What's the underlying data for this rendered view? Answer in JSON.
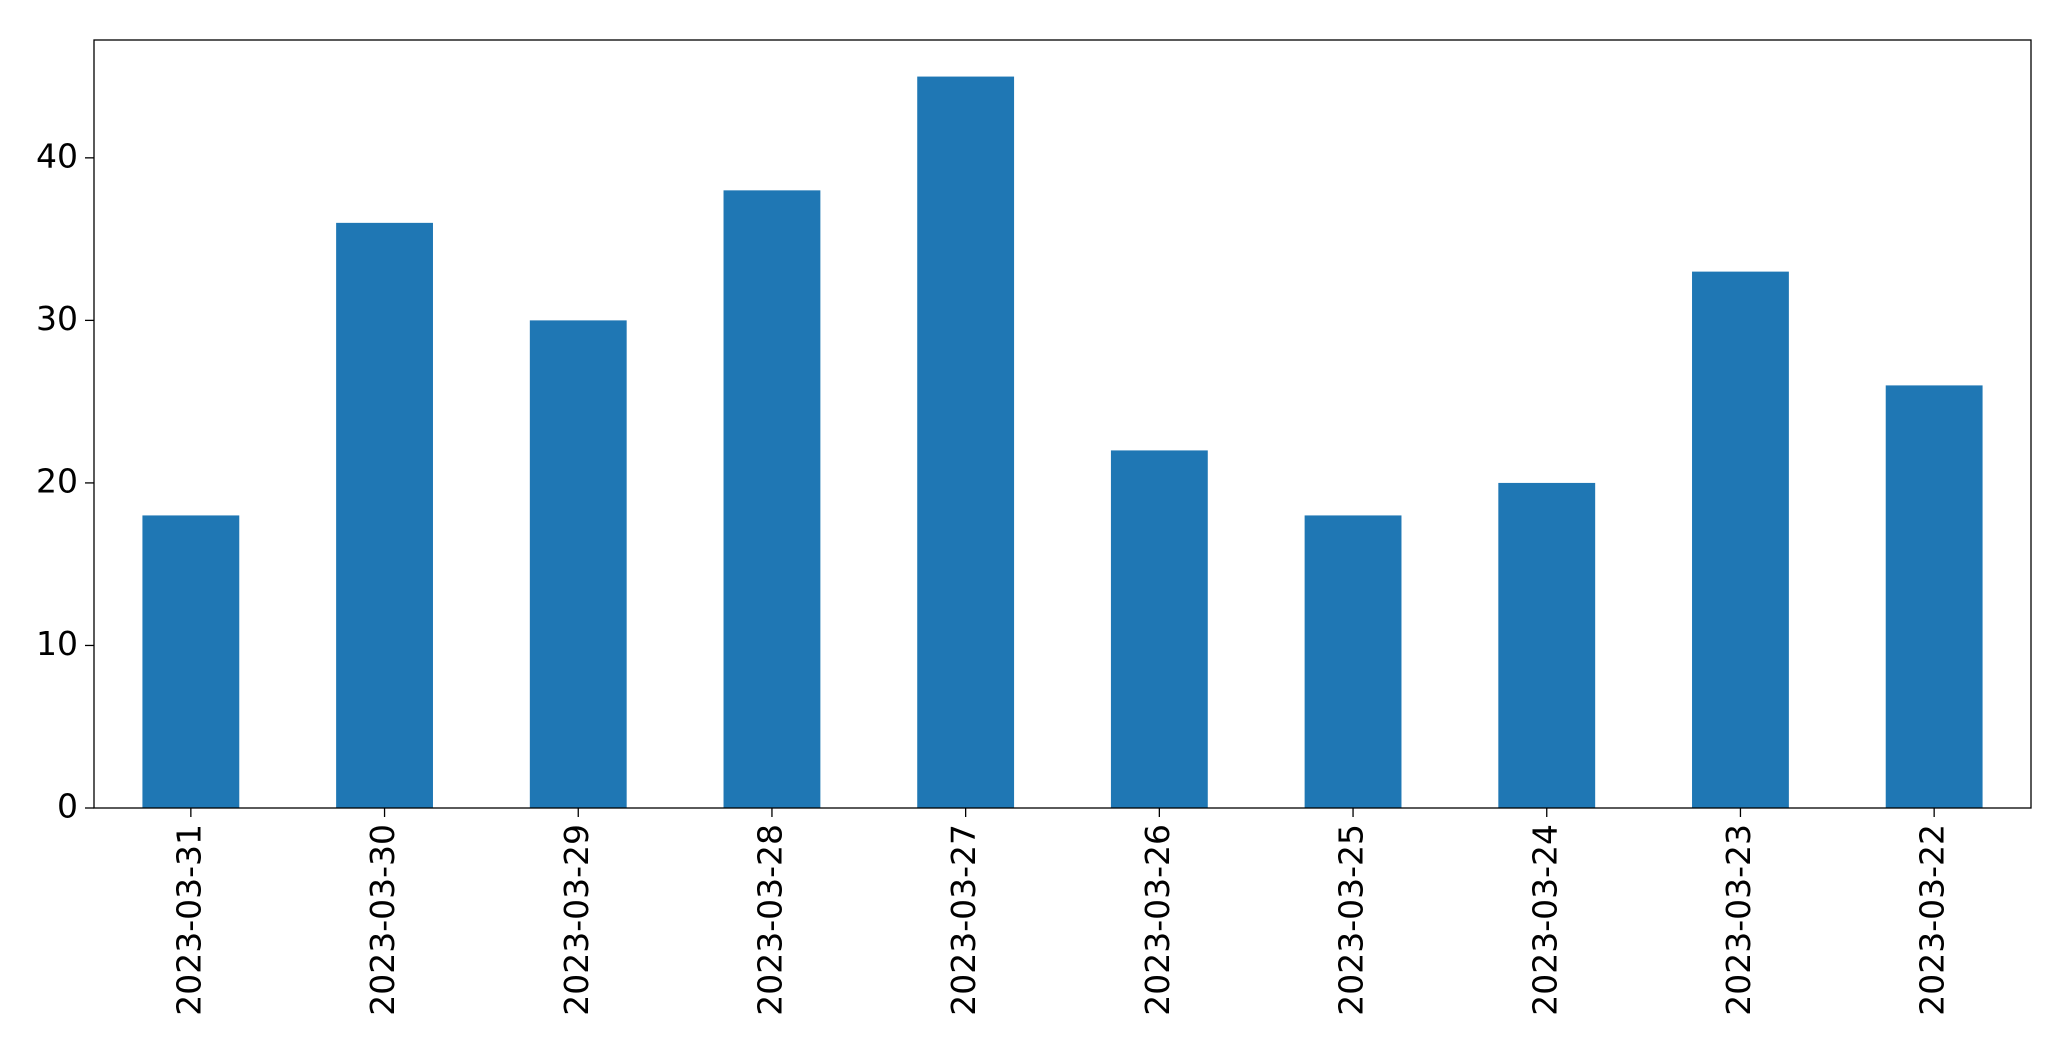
{
  "chart_data": {
    "type": "bar",
    "categories": [
      "2023-03-31",
      "2023-03-30",
      "2023-03-29",
      "2023-03-28",
      "2023-03-27",
      "2023-03-26",
      "2023-03-25",
      "2023-03-24",
      "2023-03-23",
      "2023-03-22"
    ],
    "values": [
      18,
      36,
      30,
      38,
      45,
      22,
      18,
      20,
      33,
      26
    ],
    "color": "#1f77b4",
    "ylim": [
      0,
      47.25
    ],
    "yticks": [
      0,
      10,
      20,
      30,
      40
    ],
    "grid": false
  }
}
